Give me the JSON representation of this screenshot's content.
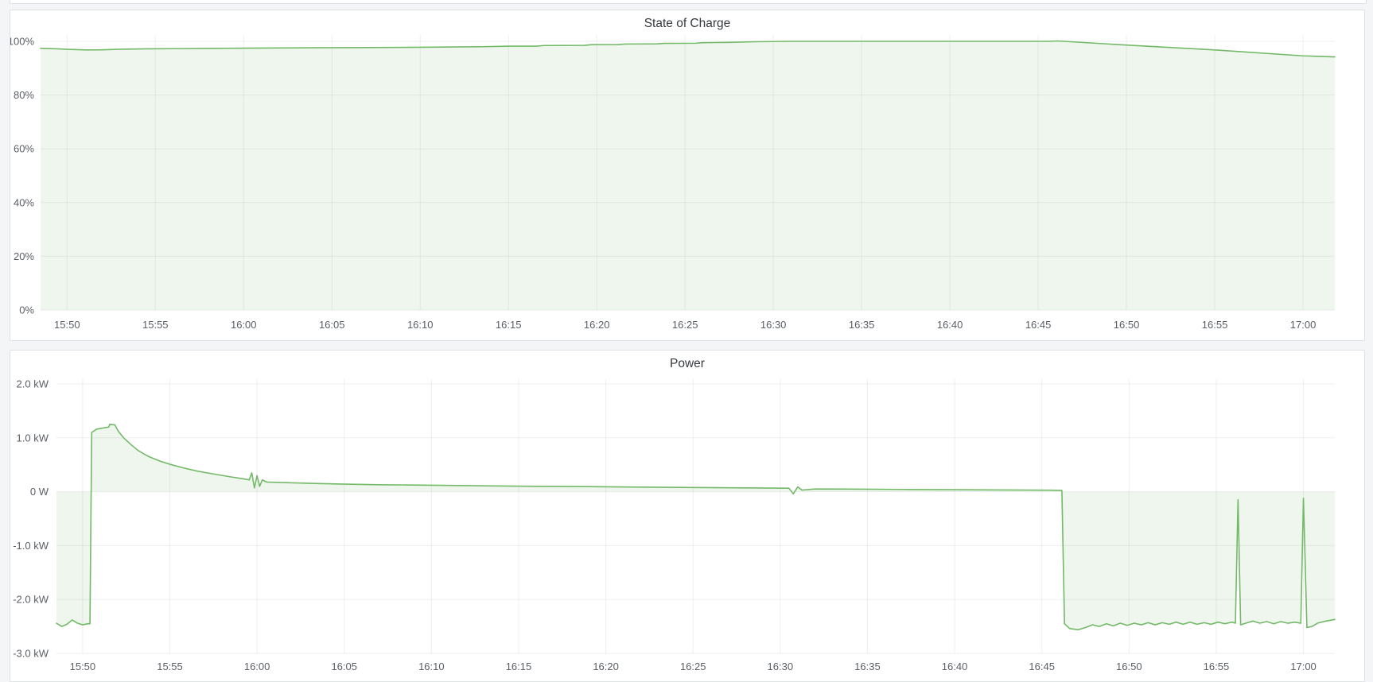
{
  "page": {
    "background_color": "#f4f5f6",
    "panel_background": "#ffffff",
    "accent_green": "#73b968"
  },
  "chart_data": [
    {
      "type": "area",
      "title": "State of Charge",
      "unit": "%",
      "legend": "none",
      "grid": true,
      "color": "#73b968",
      "fill_color": "rgba(115,185,105,0.12)",
      "ylim": [
        0,
        100
      ],
      "y_ticks": [
        {
          "value": 0,
          "label": "0%"
        },
        {
          "value": 20,
          "label": "20%"
        },
        {
          "value": 40,
          "label": "40%"
        },
        {
          "value": 60,
          "label": "60%"
        },
        {
          "value": 80,
          "label": "80%"
        },
        {
          "value": 100,
          "label": "100%"
        }
      ],
      "x_start_minute": 948.5,
      "x_end_minute": 1021.8,
      "x_ticks": [
        "15:50",
        "15:55",
        "16:00",
        "16:05",
        "16:10",
        "16:15",
        "16:20",
        "16:25",
        "16:30",
        "16:35",
        "16:40",
        "16:45",
        "16:50",
        "16:55",
        "17:00"
      ],
      "points": [
        [
          948.5,
          97.4
        ],
        [
          949.3,
          97.25
        ],
        [
          950.2,
          97.0
        ],
        [
          951.1,
          96.8
        ],
        [
          952,
          96.85
        ],
        [
          953,
          97.05
        ],
        [
          954.5,
          97.2
        ],
        [
          956.5,
          97.3
        ],
        [
          958.5,
          97.4
        ],
        [
          961,
          97.5
        ],
        [
          964,
          97.6
        ],
        [
          967,
          97.7
        ],
        [
          970,
          97.8
        ],
        [
          972,
          97.9
        ],
        [
          973.5,
          98.0
        ],
        [
          975,
          98.2
        ],
        [
          976.6,
          98.2
        ],
        [
          977,
          98.45
        ],
        [
          979.3,
          98.5
        ],
        [
          979.7,
          98.75
        ],
        [
          981.2,
          98.8
        ],
        [
          981.6,
          99.0
        ],
        [
          983.4,
          99.05
        ],
        [
          983.8,
          99.25
        ],
        [
          985.6,
          99.3
        ],
        [
          986,
          99.5
        ],
        [
          987.5,
          99.6
        ],
        [
          989,
          99.85
        ],
        [
          991,
          100
        ],
        [
          1005.6,
          100
        ],
        [
          1006.1,
          100.15
        ],
        [
          1010,
          98.6
        ],
        [
          1015,
          96.8
        ],
        [
          1020,
          94.6
        ],
        [
          1021.8,
          94.2
        ]
      ]
    },
    {
      "type": "area",
      "title": "Power",
      "unit": "kW",
      "legend": "none",
      "grid": true,
      "color": "#73b968",
      "fill_color": "rgba(115,185,105,0.12)",
      "ylim": [
        -3,
        2
      ],
      "y_ticks": [
        {
          "value": 2,
          "label": "2.0 kW"
        },
        {
          "value": 1,
          "label": "1.0 kW"
        },
        {
          "value": 0,
          "label": "0 W"
        },
        {
          "value": -1,
          "label": "-1.0 kW"
        },
        {
          "value": -2,
          "label": "-2.0 kW"
        },
        {
          "value": -3,
          "label": "-3.0 kW"
        }
      ],
      "x_start_minute": 948.5,
      "x_end_minute": 1021.8,
      "x_ticks": [
        "15:50",
        "15:55",
        "16:00",
        "16:05",
        "16:10",
        "16:15",
        "16:20",
        "16:25",
        "16:30",
        "16:35",
        "16:40",
        "16:45",
        "16:50",
        "16:55",
        "17:00"
      ],
      "points": [
        [
          948.5,
          -2.44
        ],
        [
          948.8,
          -2.5
        ],
        [
          949.1,
          -2.46
        ],
        [
          949.4,
          -2.38
        ],
        [
          949.7,
          -2.44
        ],
        [
          950.0,
          -2.47
        ],
        [
          950.3,
          -2.45
        ],
        [
          950.42,
          -2.45
        ],
        [
          950.52,
          1.1
        ],
        [
          950.8,
          1.16
        ],
        [
          951.3,
          1.19
        ],
        [
          951.5,
          1.2
        ],
        [
          951.55,
          1.25
        ],
        [
          951.85,
          1.24
        ],
        [
          952.05,
          1.12
        ],
        [
          952.35,
          1.0
        ],
        [
          952.75,
          0.88
        ],
        [
          953.2,
          0.76
        ],
        [
          953.8,
          0.65
        ],
        [
          954.5,
          0.56
        ],
        [
          955.1,
          0.5
        ],
        [
          955.8,
          0.44
        ],
        [
          956.6,
          0.38
        ],
        [
          957.5,
          0.33
        ],
        [
          958.4,
          0.28
        ],
        [
          959.2,
          0.24
        ],
        [
          959.55,
          0.22
        ],
        [
          959.7,
          0.35
        ],
        [
          959.85,
          0.07
        ],
        [
          960.0,
          0.3
        ],
        [
          960.15,
          0.1
        ],
        [
          960.3,
          0.22
        ],
        [
          960.55,
          0.18
        ],
        [
          961.5,
          0.17
        ],
        [
          963,
          0.155
        ],
        [
          965,
          0.14
        ],
        [
          967,
          0.13
        ],
        [
          970,
          0.12
        ],
        [
          973,
          0.11
        ],
        [
          976,
          0.1
        ],
        [
          979,
          0.095
        ],
        [
          982,
          0.085
        ],
        [
          985,
          0.078
        ],
        [
          988,
          0.07
        ],
        [
          990.5,
          0.065
        ],
        [
          990.75,
          -0.04
        ],
        [
          991.0,
          0.09
        ],
        [
          991.25,
          0.03
        ],
        [
          992,
          0.05
        ],
        [
          994,
          0.048
        ],
        [
          997,
          0.042
        ],
        [
          1000,
          0.038
        ],
        [
          1003,
          0.032
        ],
        [
          1005.5,
          0.028
        ],
        [
          1006.15,
          0.025
        ],
        [
          1006.3,
          -2.45
        ],
        [
          1006.6,
          -2.54
        ],
        [
          1007.1,
          -2.56
        ],
        [
          1007.5,
          -2.52
        ],
        [
          1007.9,
          -2.47
        ],
        [
          1008.3,
          -2.5
        ],
        [
          1008.7,
          -2.45
        ],
        [
          1009.1,
          -2.49
        ],
        [
          1009.5,
          -2.44
        ],
        [
          1009.9,
          -2.48
        ],
        [
          1010.3,
          -2.44
        ],
        [
          1010.7,
          -2.47
        ],
        [
          1011.1,
          -2.43
        ],
        [
          1011.5,
          -2.47
        ],
        [
          1011.9,
          -2.43
        ],
        [
          1012.3,
          -2.46
        ],
        [
          1012.7,
          -2.42
        ],
        [
          1013.1,
          -2.46
        ],
        [
          1013.5,
          -2.42
        ],
        [
          1013.9,
          -2.46
        ],
        [
          1014.3,
          -2.43
        ],
        [
          1014.7,
          -2.46
        ],
        [
          1015.1,
          -2.42
        ],
        [
          1015.5,
          -2.45
        ],
        [
          1015.9,
          -2.42
        ],
        [
          1016.1,
          -2.44
        ],
        [
          1016.25,
          -0.15
        ],
        [
          1016.4,
          -2.47
        ],
        [
          1016.7,
          -2.44
        ],
        [
          1017.1,
          -2.4
        ],
        [
          1017.5,
          -2.44
        ],
        [
          1017.9,
          -2.41
        ],
        [
          1018.3,
          -2.45
        ],
        [
          1018.7,
          -2.41
        ],
        [
          1019.1,
          -2.44
        ],
        [
          1019.5,
          -2.42
        ],
        [
          1019.85,
          -2.44
        ],
        [
          1020.0,
          -0.12
        ],
        [
          1020.2,
          -2.52
        ],
        [
          1020.5,
          -2.5
        ],
        [
          1020.8,
          -2.44
        ],
        [
          1021.3,
          -2.4
        ],
        [
          1021.8,
          -2.37
        ]
      ]
    }
  ]
}
